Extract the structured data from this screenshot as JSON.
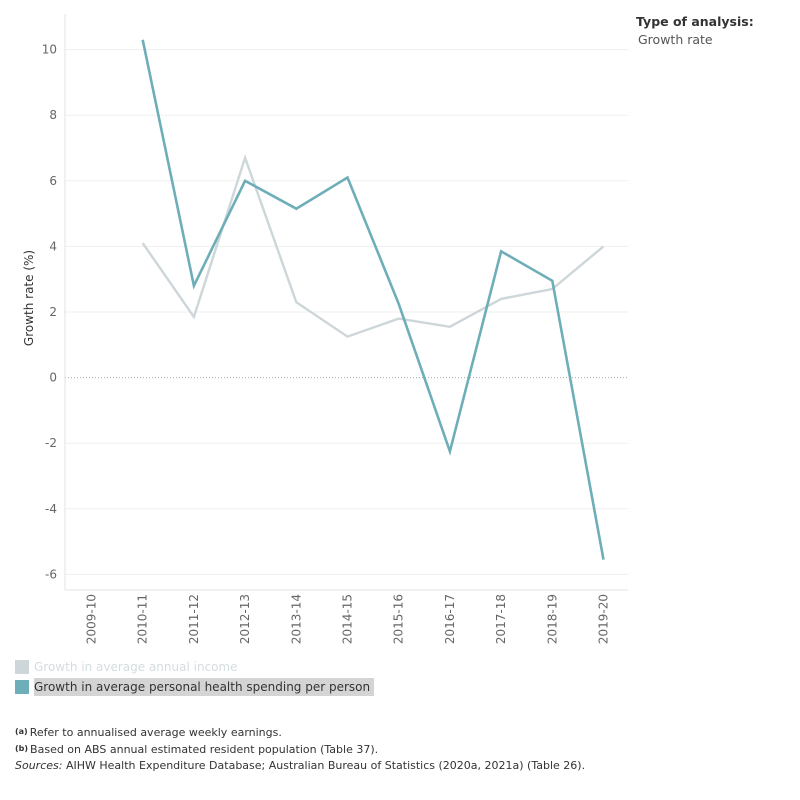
{
  "filter": {
    "title": "Type of analysis:",
    "value": "Growth rate"
  },
  "chart_data": {
    "type": "line",
    "title": "",
    "xlabel": "",
    "ylabel": "Growth rate (%)",
    "ylim": [
      -6.5,
      11
    ],
    "yticks": [
      -6,
      -4,
      -2,
      0,
      2,
      4,
      6,
      8,
      10
    ],
    "ytick_labels": [
      "-6",
      "-4",
      "-2",
      "0",
      "2",
      "4",
      "6",
      "8",
      "10"
    ],
    "categories": [
      "2009-10",
      "2010-11",
      "2011-12",
      "2012-13",
      "2013-14",
      "2014-15",
      "2015-16",
      "2016-17",
      "2017-18",
      "2018-19",
      "2019-20"
    ],
    "grid": true,
    "legend_position": "bottom-left",
    "series": [
      {
        "name": "Growth in average annual income",
        "color": "#cdd6d9",
        "highlighted": false,
        "values": [
          null,
          4.1,
          1.85,
          6.7,
          2.3,
          1.25,
          1.8,
          1.55,
          2.4,
          2.7,
          4.0
        ]
      },
      {
        "name": "Growth in average personal health spending per person",
        "color": "#6eaeb8",
        "highlighted": true,
        "values": [
          null,
          10.3,
          2.8,
          6.0,
          5.15,
          6.1,
          2.25,
          -2.25,
          3.85,
          2.95,
          -5.55
        ]
      }
    ]
  },
  "notes": {
    "a_mark": "(a)",
    "a_text": "Refer to annualised average weekly earnings.",
    "b_mark": "(b)",
    "b_text": "Based on ABS annual estimated resident population (Table 37).",
    "sources_label": "Sources:",
    "sources_text": "AIHW Health Expenditure Database; Australian Bureau of Statistics (2020a, 2021a) (Table 26)."
  }
}
